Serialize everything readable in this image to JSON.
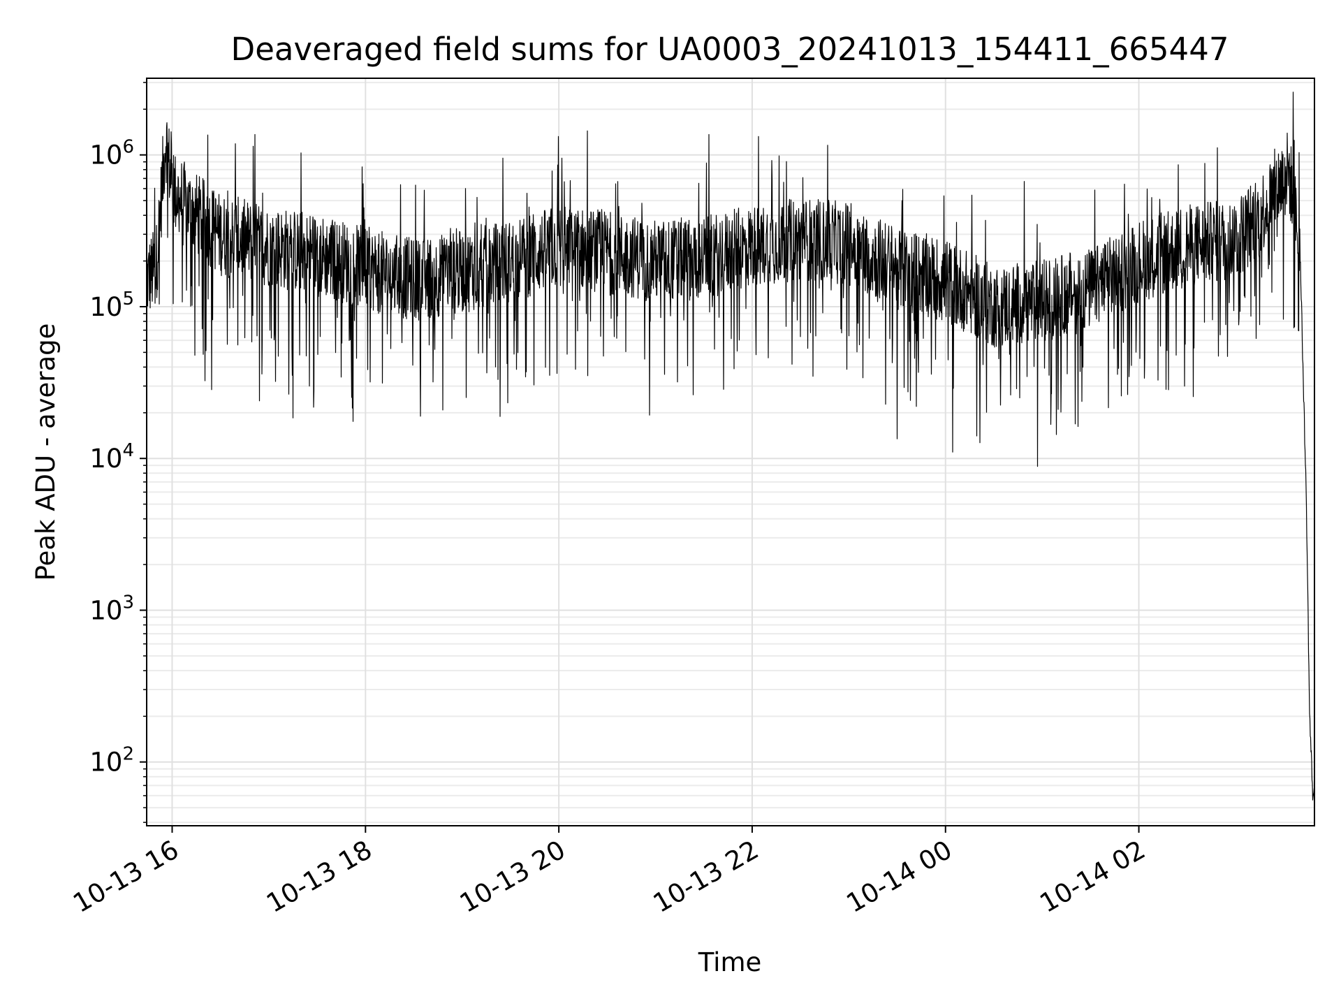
{
  "chart_data": {
    "type": "line",
    "title": "Deaveraged field sums for UA0003_20241013_154411_665447",
    "xlabel": "Time",
    "ylabel": "Peak ADU - average",
    "yscale": "log",
    "grid": true,
    "xlim": [
      "2024-10-13 15:44:11",
      "2024-10-14 03:49:00"
    ],
    "ylim": [
      38,
      3200000
    ],
    "x_tick_labels": [
      "10-13 16",
      "10-13 18",
      "10-13 20",
      "10-13 22",
      "10-14 00",
      "10-14 02"
    ],
    "x_ticks": [
      "2024-10-13 16:00:00",
      "2024-10-13 18:00:00",
      "2024-10-13 20:00:00",
      "2024-10-13 22:00:00",
      "2024-10-14 00:00:00",
      "2024-10-14 02:00:00"
    ],
    "y_ticks": [
      {
        "base": "10",
        "exp": "2",
        "value": 100
      },
      {
        "base": "10",
        "exp": "3",
        "value": 1000
      },
      {
        "base": "10",
        "exp": "4",
        "value": 10000
      },
      {
        "base": "10",
        "exp": "5",
        "value": 100000
      },
      {
        "base": "10",
        "exp": "6",
        "value": 1000000
      }
    ],
    "series": [
      {
        "color": "#000000",
        "x": [
          "2024-10-13 15:44:11",
          "2024-10-13 15:50:00",
          "2024-10-13 15:56:00",
          "2024-10-13 16:00:00",
          "2024-10-13 16:10:00",
          "2024-10-13 16:30:00",
          "2024-10-13 17:00:00",
          "2024-10-13 17:30:00",
          "2024-10-13 18:00:00",
          "2024-10-13 18:30:00",
          "2024-10-13 19:00:00",
          "2024-10-13 19:30:00",
          "2024-10-13 20:00:00",
          "2024-10-13 20:30:00",
          "2024-10-13 21:00:00",
          "2024-10-13 21:30:00",
          "2024-10-13 22:00:00",
          "2024-10-13 22:30:00",
          "2024-10-13 23:00:00",
          "2024-10-13 23:30:00",
          "2024-10-14 00:00:00",
          "2024-10-14 00:30:00",
          "2024-10-14 01:00:00",
          "2024-10-14 01:30:00",
          "2024-10-14 02:00:00",
          "2024-10-14 02:30:00",
          "2024-10-14 03:00:00",
          "2024-10-14 03:15:00",
          "2024-10-14 03:25:00",
          "2024-10-14 03:33:00",
          "2024-10-14 03:40:00",
          "2024-10-14 03:44:00",
          "2024-10-14 03:46:00",
          "2024-10-14 03:48:00"
        ],
        "y": [
          150000,
          180000,
          1300000,
          600000,
          450000,
          300000,
          250000,
          220000,
          180000,
          150000,
          170000,
          200000,
          250000,
          230000,
          200000,
          210000,
          250000,
          280000,
          260000,
          180000,
          150000,
          100000,
          110000,
          130000,
          200000,
          250000,
          280000,
          400000,
          600000,
          800000,
          250000,
          5000,
          200,
          60
        ]
      }
    ],
    "peak_annotation_values": [
      1800000,
      1100000,
      10000,
      7500,
      12000
    ]
  }
}
